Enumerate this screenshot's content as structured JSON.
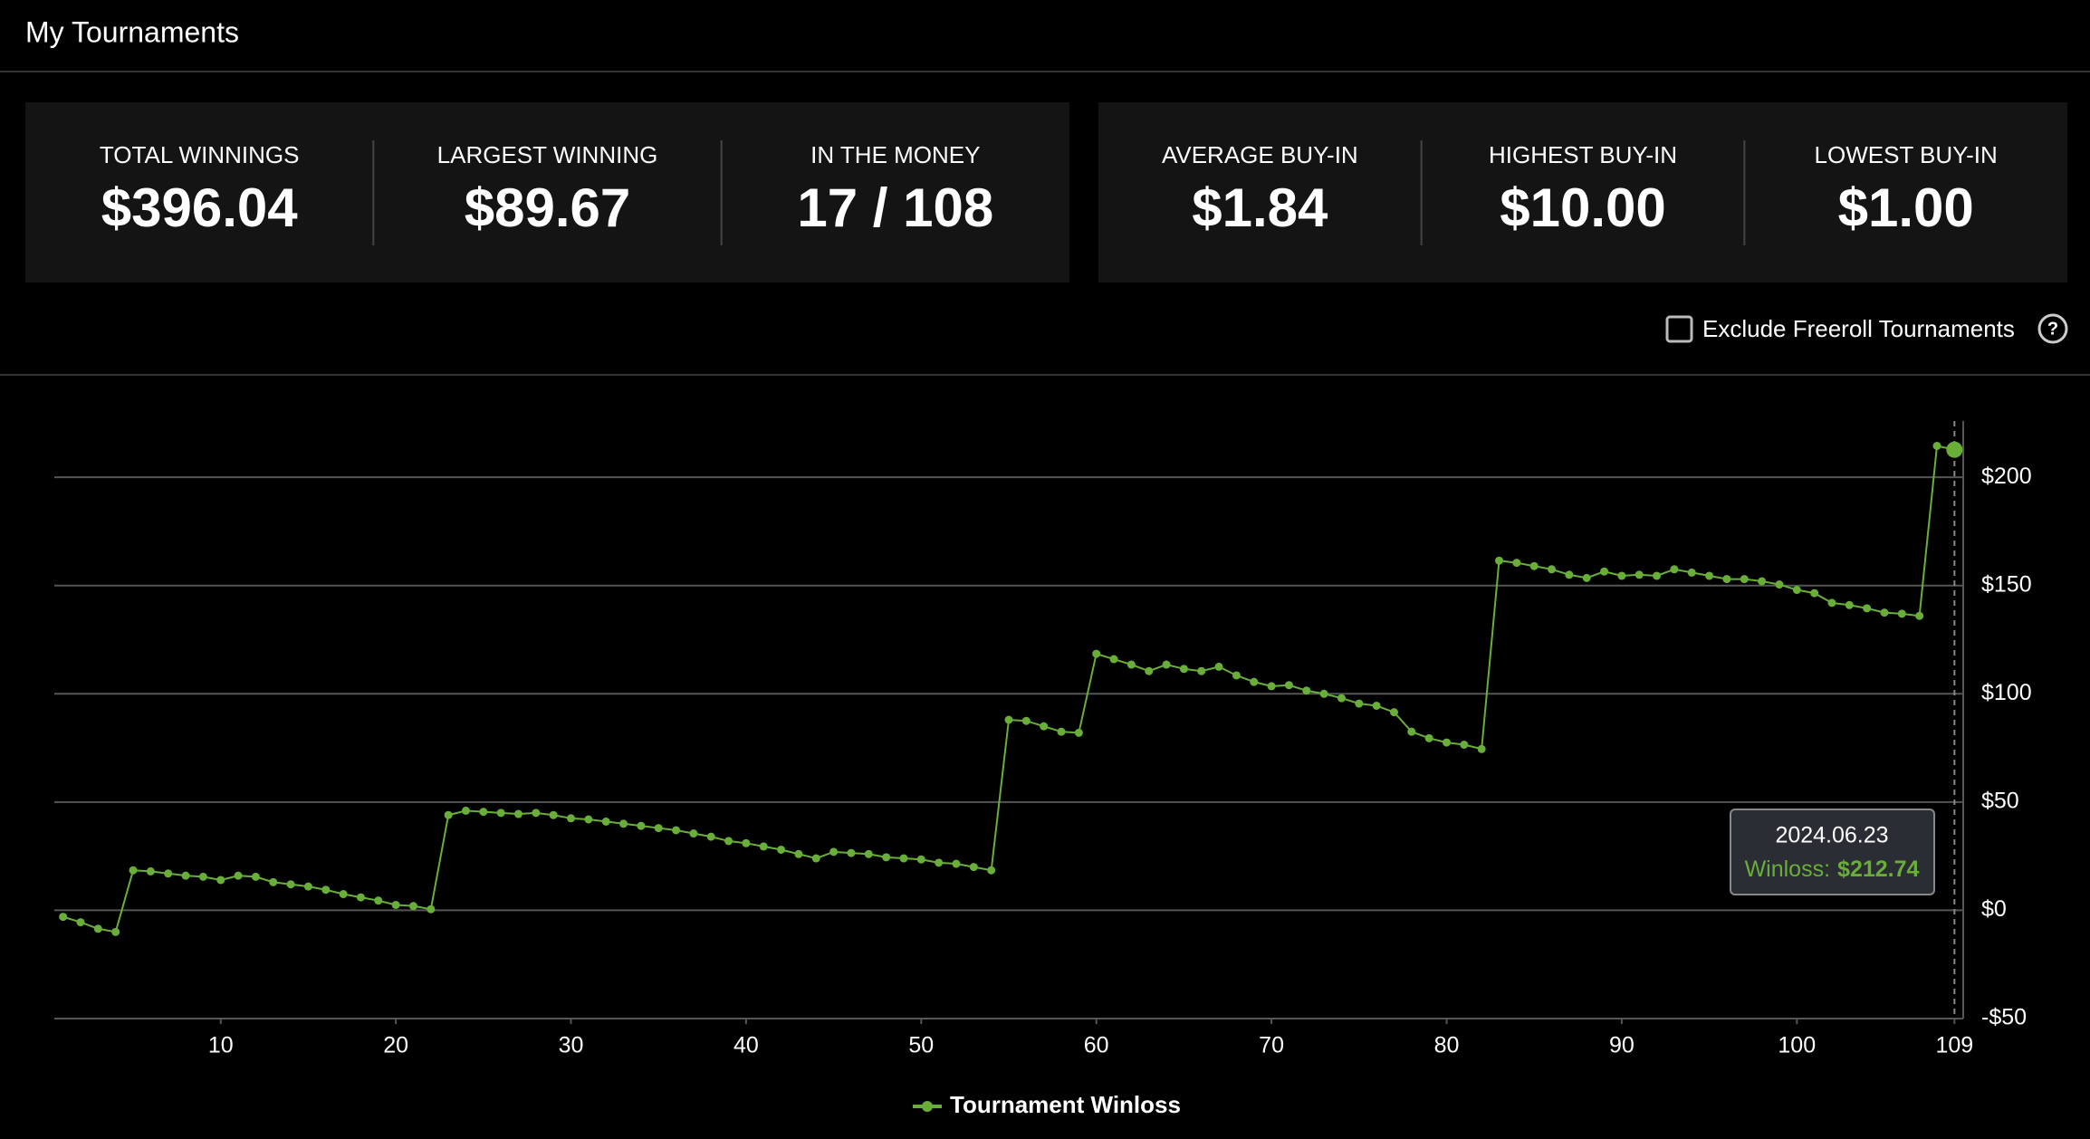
{
  "header": {
    "title": "My Tournaments"
  },
  "cards": [
    [
      {
        "label": "TOTAL WINNINGS",
        "value": "$396.04",
        "highlight": true
      },
      {
        "label": "LARGEST WINNING",
        "value": "$89.67",
        "highlight": false
      },
      {
        "label": "IN THE MONEY",
        "value": "17 / 108",
        "highlight": false
      }
    ],
    [
      {
        "label": "AVERAGE BUY-IN",
        "value": "$1.84",
        "highlight": true
      },
      {
        "label": "HIGHEST BUY-IN",
        "value": "$10.00",
        "highlight": false
      },
      {
        "label": "LOWEST BUY-IN",
        "value": "$1.00",
        "highlight": false
      }
    ]
  ],
  "filter": {
    "label": "Exclude Freeroll Tournaments",
    "checked": false
  },
  "chart_data": {
    "type": "line",
    "x": [
      1,
      2,
      3,
      4,
      5,
      6,
      7,
      8,
      9,
      10,
      11,
      12,
      13,
      14,
      15,
      16,
      17,
      18,
      19,
      20,
      21,
      22,
      23,
      24,
      25,
      26,
      27,
      28,
      29,
      30,
      31,
      32,
      33,
      34,
      35,
      36,
      37,
      38,
      39,
      40,
      41,
      42,
      43,
      44,
      45,
      46,
      47,
      48,
      49,
      50,
      51,
      52,
      53,
      54,
      55,
      56,
      57,
      58,
      59,
      60,
      61,
      62,
      63,
      64,
      65,
      66,
      67,
      68,
      69,
      70,
      71,
      72,
      73,
      74,
      75,
      76,
      77,
      78,
      79,
      80,
      81,
      82,
      83,
      84,
      85,
      86,
      87,
      88,
      89,
      90,
      91,
      92,
      93,
      94,
      95,
      96,
      97,
      98,
      99,
      100,
      101,
      102,
      103,
      104,
      105,
      106,
      107,
      108,
      109
    ],
    "series": [
      {
        "name": "Tournament Winloss",
        "color": "#6aae3a",
        "values": [
          -3,
          -5.5,
          -8.5,
          -10,
          18.5,
          18,
          17,
          16,
          15.5,
          14,
          16,
          15.5,
          13,
          12,
          11,
          9.5,
          7.5,
          6,
          4.5,
          2.5,
          2,
          0.5,
          44,
          46,
          45.5,
          45,
          44.5,
          45,
          44,
          42.5,
          42,
          41,
          40,
          39,
          38,
          37,
          35.5,
          34,
          32,
          31,
          29.5,
          28,
          26,
          24,
          27,
          26.5,
          26,
          24.5,
          24,
          23.5,
          22,
          21.5,
          20,
          18.5,
          88,
          87.5,
          85,
          82.5,
          82,
          118.5,
          116,
          113.5,
          110.5,
          113.5,
          111.5,
          110.5,
          112.5,
          108.5,
          105.5,
          103.5,
          104,
          101.5,
          100,
          98,
          95.5,
          94.5,
          91.5,
          82.5,
          79.5,
          77.5,
          76.5,
          74.5,
          161.5,
          160.5,
          159,
          157.5,
          155,
          153.5,
          156.5,
          154.5,
          155,
          154.5,
          157.5,
          156,
          154.5,
          153,
          153,
          152,
          150.5,
          148,
          146.5,
          142,
          141,
          139.5,
          137.5,
          137,
          136,
          214.5,
          212.74
        ]
      }
    ],
    "xlim": [
      0.5,
      109.5
    ],
    "xticks": [
      10,
      20,
      30,
      40,
      50,
      60,
      70,
      80,
      90,
      100,
      109
    ],
    "ylim": [
      -50,
      226
    ],
    "yticks": [
      {
        "value": -50,
        "label": "-$50"
      },
      {
        "value": 0,
        "label": "$0"
      },
      {
        "value": 50,
        "label": "$50"
      },
      {
        "value": 100,
        "label": "$100"
      },
      {
        "value": 150,
        "label": "$150"
      },
      {
        "value": 200,
        "label": "$200"
      }
    ],
    "grid": true,
    "tooltip": {
      "title": "2024.06.23",
      "label": "Winloss:",
      "value": "$212.74"
    }
  }
}
